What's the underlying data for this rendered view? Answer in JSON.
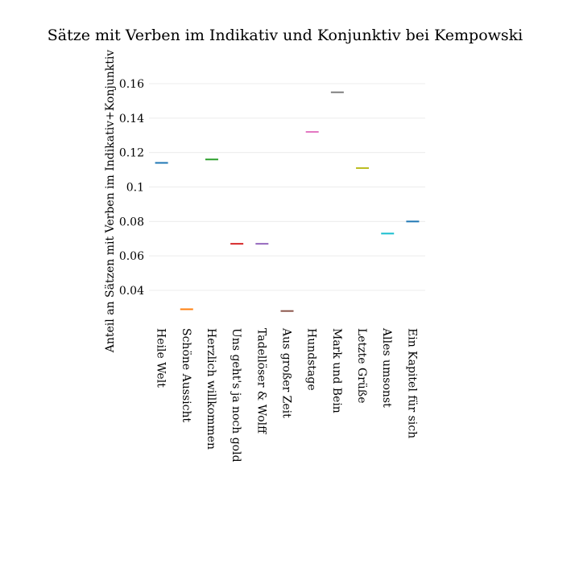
{
  "chart_data": {
    "type": "scatter",
    "marker": "horizontal-dash",
    "title": "Sätze mit Verben im Indikativ und Konjunktiv bei Kempowski",
    "xlabel": "",
    "ylabel": "Anteil an Sätzen mit Verben im Indikativ+Konjunktiv",
    "ylim": [
      0.022,
      0.17
    ],
    "yticks": [
      0.04,
      0.06,
      0.08,
      0.1,
      0.12,
      0.14,
      0.16
    ],
    "ytick_labels": [
      "0.04",
      "0.06",
      "0.08",
      "0.1",
      "0.12",
      "0.14",
      "0.16"
    ],
    "grid": true,
    "legend": "none",
    "categories": [
      "Heile Welt",
      "Schöne Aussicht",
      "Herzlich willkommen",
      "Uns geht's ja noch gold",
      "Tadellöser & Wolff",
      "Aus großer Zeit",
      "Hundstage",
      "Mark und Bein",
      "Letzte Grüße",
      "Alles umsonst",
      "Ein Kapitel für sich"
    ],
    "values": [
      0.114,
      0.029,
      0.116,
      0.067,
      0.067,
      0.028,
      0.132,
      0.155,
      0.111,
      0.073,
      0.08
    ],
    "colors": [
      "#1f77b4",
      "#ff7f0e",
      "#2ca02c",
      "#d62728",
      "#9467bd",
      "#8c564b",
      "#e377c2",
      "#7f7f7f",
      "#bcbd22",
      "#17becf",
      "#1f77b4"
    ]
  }
}
